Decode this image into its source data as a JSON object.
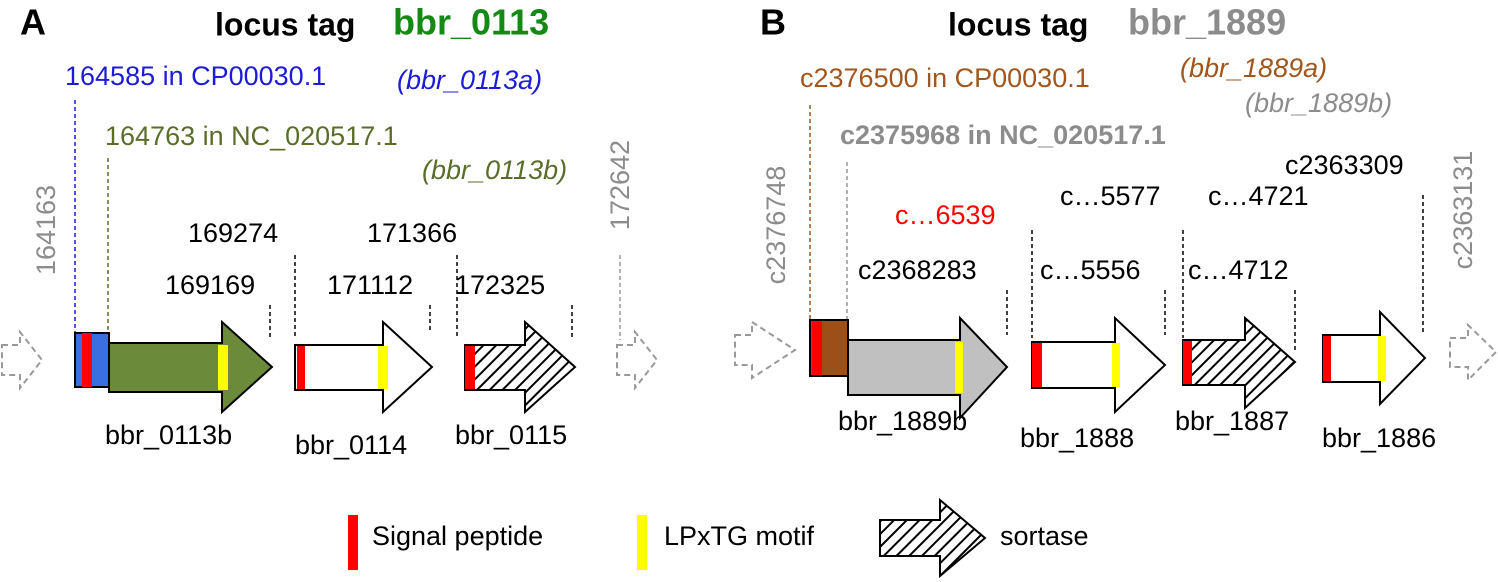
{
  "panel_a": {
    "letter": "A",
    "locus_tag": "locus tag",
    "locus_id": "bbr_0113",
    "blue_coord": "164585 in CP00030.1",
    "blue_name": "(bbr_0113a)",
    "olive_coord": "164763 in NC_020517.1",
    "olive_name": "(bbr_0113b)",
    "left_coord": "164163",
    "right_coord": "172642",
    "coords": [
      "169274",
      "169169",
      "171366",
      "171112",
      "172325"
    ],
    "genes": [
      "bbr_0113b",
      "bbr_0114",
      "bbr_0115"
    ]
  },
  "panel_b": {
    "letter": "B",
    "locus_tag": "locus tag",
    "locus_id": "bbr_1889",
    "brown_coord": "c2376500 in CP00030.1",
    "brown_name": "(bbr_1889a)",
    "gray_name": "(bbr_1889b)",
    "gray_coord": "c2375968 in NC_020517.1",
    "left_coord": "c2376748",
    "right_coord": "c2363131",
    "red_coord": "c…6539",
    "coords": [
      "c2368283",
      "c…5577",
      "c…5556",
      "c…4721",
      "c…4712",
      "c2363309"
    ],
    "genes": [
      "bbr_1889b",
      "bbr_1888",
      "bbr_1887",
      "bbr_1886"
    ]
  },
  "legend": [
    "Signal peptide",
    "LPxTG motif",
    "sortase"
  ]
}
